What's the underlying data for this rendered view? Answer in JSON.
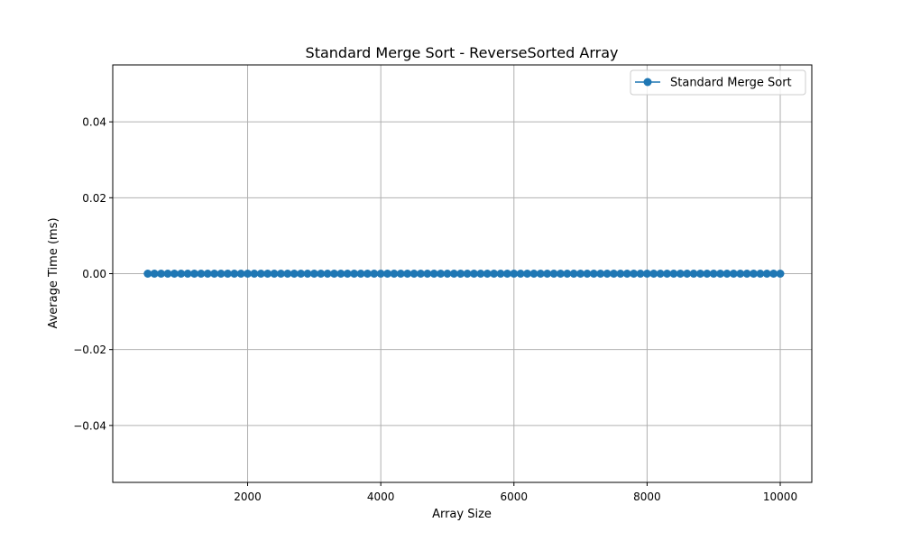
{
  "chart_data": {
    "type": "line",
    "title": "Standard Merge Sort - ReverseSorted Array",
    "xlabel": "Array Size",
    "ylabel": "Average Time (ms)",
    "xlim": [
      -26,
      10474
    ],
    "ylim": [
      -0.055,
      0.055
    ],
    "xticks": [
      2000,
      4000,
      6000,
      8000,
      10000
    ],
    "yticks": [
      -0.04,
      -0.02,
      0.0,
      0.02,
      0.04
    ],
    "xtick_labels": [
      "2000",
      "4000",
      "6000",
      "8000",
      "10000"
    ],
    "ytick_labels": [
      "−0.04",
      "−0.02",
      "0.00",
      "0.02",
      "0.04"
    ],
    "grid": true,
    "legend_position": "upper right",
    "series": [
      {
        "name": "Standard Merge Sort",
        "color": "#1f77b4",
        "marker": "circle",
        "x": [
          500,
          600,
          700,
          800,
          900,
          1000,
          1100,
          1200,
          1300,
          1400,
          1500,
          1600,
          1700,
          1800,
          1900,
          2000,
          2100,
          2200,
          2300,
          2400,
          2500,
          2600,
          2700,
          2800,
          2900,
          3000,
          3100,
          3200,
          3300,
          3400,
          3500,
          3600,
          3700,
          3800,
          3900,
          4000,
          4100,
          4200,
          4300,
          4400,
          4500,
          4600,
          4700,
          4800,
          4900,
          5000,
          5100,
          5200,
          5300,
          5400,
          5500,
          5600,
          5700,
          5800,
          5900,
          6000,
          6100,
          6200,
          6300,
          6400,
          6500,
          6600,
          6700,
          6800,
          6900,
          7000,
          7100,
          7200,
          7300,
          7400,
          7500,
          7600,
          7700,
          7800,
          7900,
          8000,
          8100,
          8200,
          8300,
          8400,
          8500,
          8600,
          8700,
          8800,
          8900,
          9000,
          9100,
          9200,
          9300,
          9400,
          9500,
          9600,
          9700,
          9800,
          9900,
          10000
        ],
        "y": [
          0,
          0,
          0,
          0,
          0,
          0,
          0,
          0,
          0,
          0,
          0,
          0,
          0,
          0,
          0,
          0,
          0,
          0,
          0,
          0,
          0,
          0,
          0,
          0,
          0,
          0,
          0,
          0,
          0,
          0,
          0,
          0,
          0,
          0,
          0,
          0,
          0,
          0,
          0,
          0,
          0,
          0,
          0,
          0,
          0,
          0,
          0,
          0,
          0,
          0,
          0,
          0,
          0,
          0,
          0,
          0,
          0,
          0,
          0,
          0,
          0,
          0,
          0,
          0,
          0,
          0,
          0,
          0,
          0,
          0,
          0,
          0,
          0,
          0,
          0,
          0,
          0,
          0,
          0,
          0,
          0,
          0,
          0,
          0,
          0,
          0,
          0,
          0,
          0,
          0,
          0,
          0,
          0,
          0,
          0,
          0
        ]
      }
    ]
  }
}
